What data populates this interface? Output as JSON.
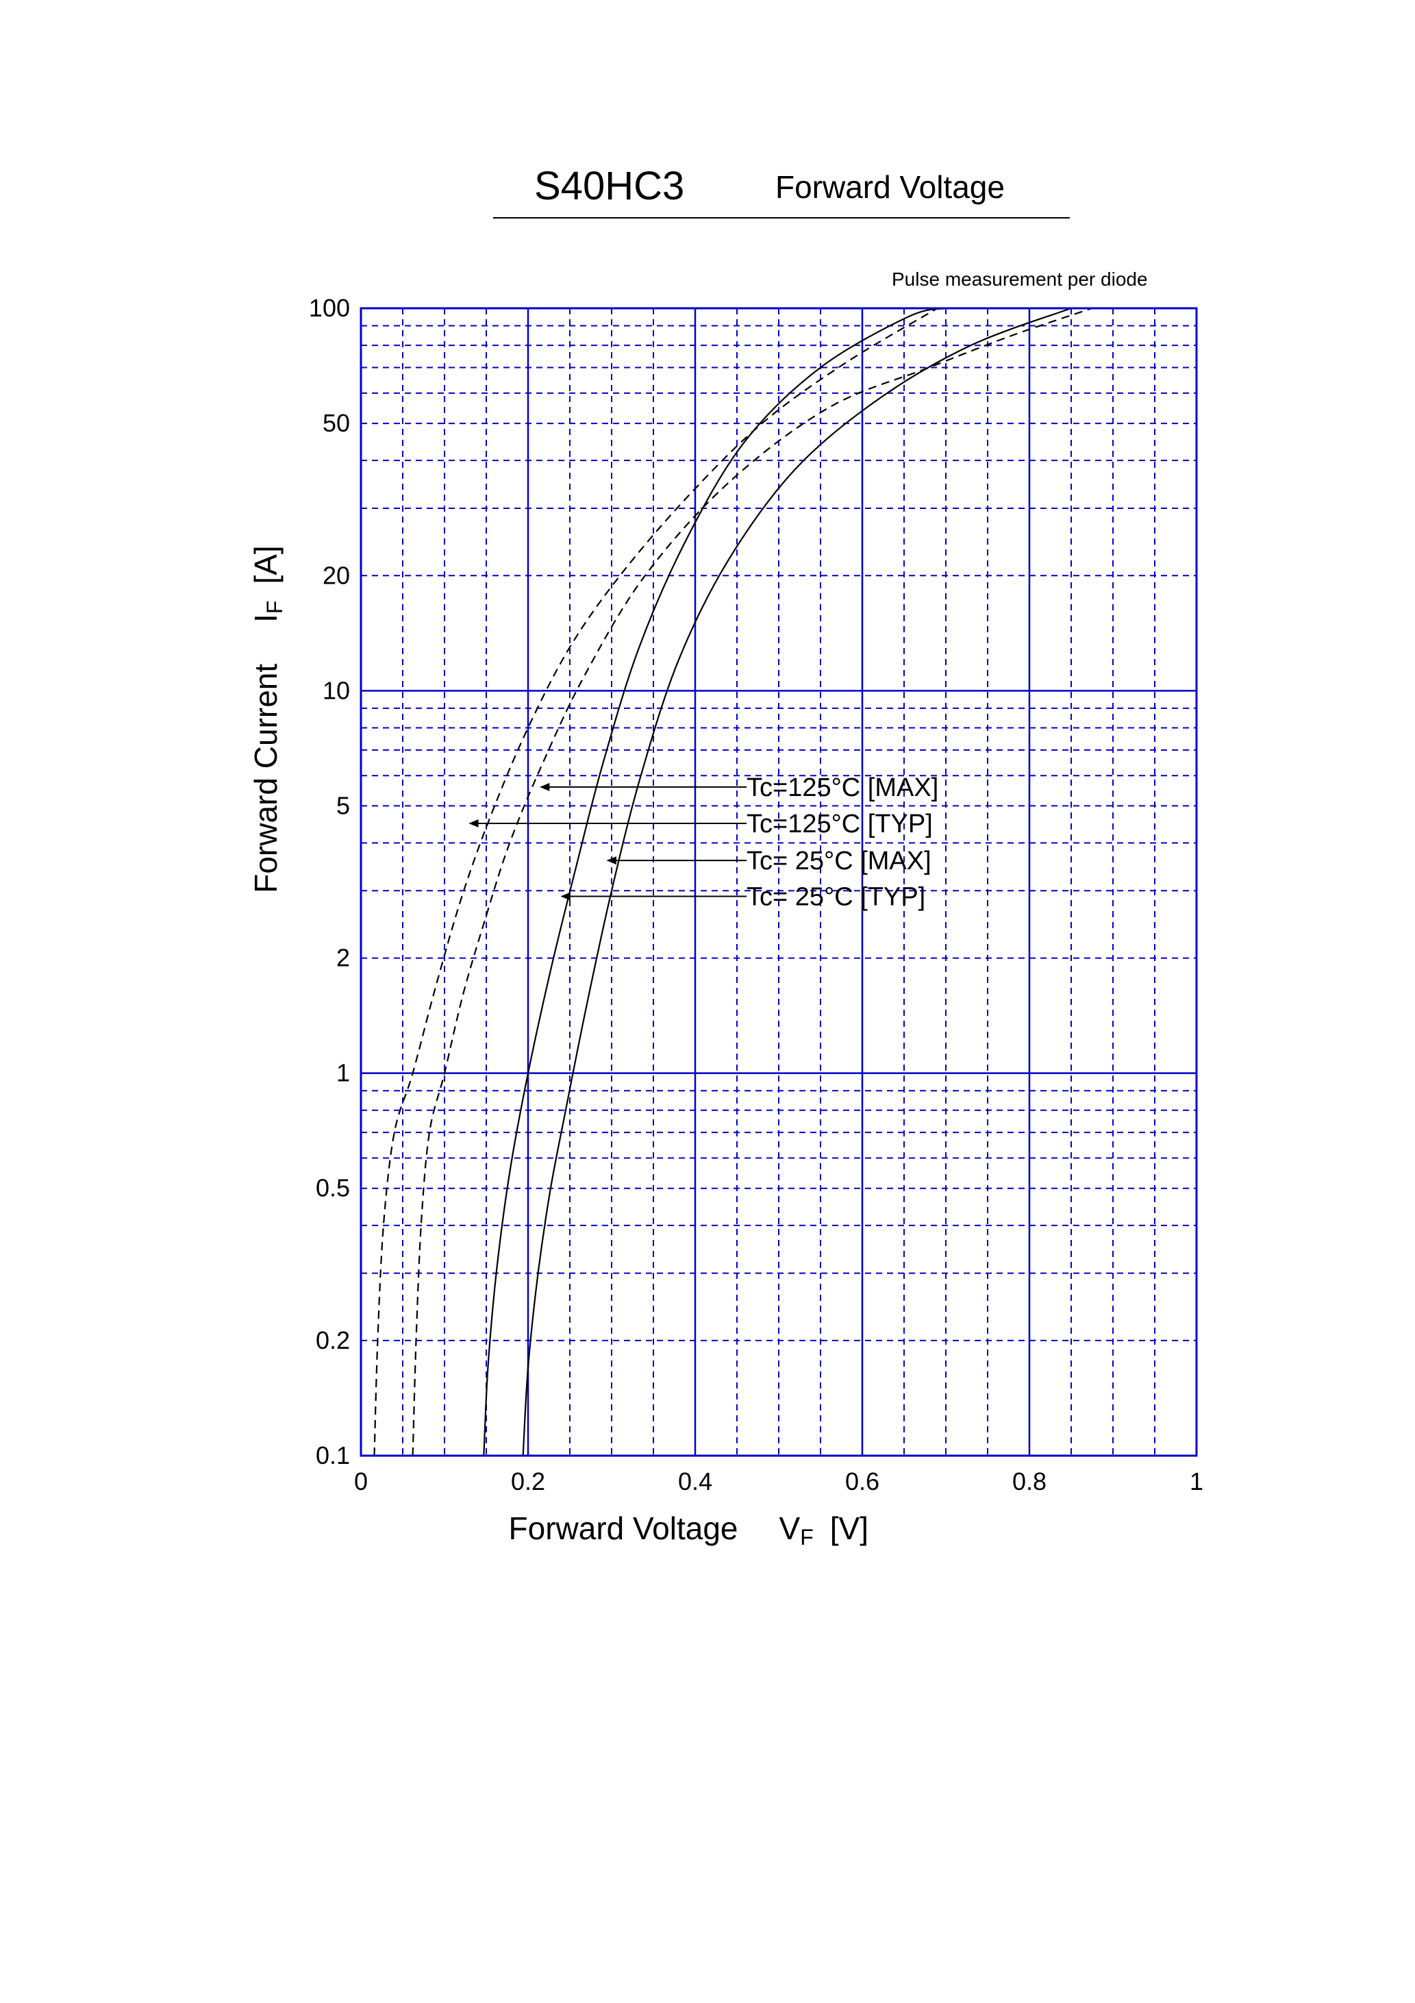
{
  "header": {
    "part_number": "S40HC3",
    "title": "Forward Voltage",
    "note": "Pulse measurement per diode"
  },
  "chart_data": {
    "type": "line",
    "title": "Forward Voltage",
    "xlabel": {
      "main": "Forward Voltage",
      "symbol": "V",
      "subscript": "F",
      "unit": "[V]"
    },
    "ylabel": {
      "main": "Forward Current",
      "symbol": "I",
      "subscript": "F",
      "unit": "[A]"
    },
    "xlim": [
      0,
      1
    ],
    "ylim": [
      0.1,
      100
    ],
    "yscale": "log",
    "grid": true,
    "x_ticks": [
      {
        "v": 0,
        "label": "0"
      },
      {
        "v": 0.2,
        "label": "0.2"
      },
      {
        "v": 0.4,
        "label": "0.4"
      },
      {
        "v": 0.6,
        "label": "0.6"
      },
      {
        "v": 0.8,
        "label": "0.8"
      },
      {
        "v": 1,
        "label": "1"
      }
    ],
    "y_ticks": [
      {
        "v": 0.1,
        "label": "0.1"
      },
      {
        "v": 0.2,
        "label": "0.2"
      },
      {
        "v": 0.5,
        "label": "0.5"
      },
      {
        "v": 1,
        "label": "1"
      },
      {
        "v": 2,
        "label": "2"
      },
      {
        "v": 5,
        "label": "5"
      },
      {
        "v": 10,
        "label": "10"
      },
      {
        "v": 20,
        "label": "20"
      },
      {
        "v": 50,
        "label": "50"
      },
      {
        "v": 100,
        "label": "100"
      }
    ],
    "series": [
      {
        "name": "Tc=125°C [MAX]",
        "style": "dashed",
        "x": [
          0.062,
          0.066,
          0.072,
          0.082,
          0.1,
          0.122,
          0.148,
          0.178,
          0.218,
          0.268,
          0.34,
          0.44,
          0.56,
          0.68,
          0.78,
          0.875
        ],
        "y": [
          0.1,
          0.2,
          0.4,
          0.7,
          1.0,
          1.6,
          2.5,
          4.0,
          6.5,
          11,
          20,
          35,
          55,
          70,
          85,
          100
        ],
        "annotation": {
          "label": "Tc=125°C [MAX]",
          "x": 0.215,
          "y": 5.6
        }
      },
      {
        "name": "Tc=125°C [TYP]",
        "style": "dashed",
        "x": [
          0.016,
          0.02,
          0.027,
          0.04,
          0.062,
          0.09,
          0.123,
          0.16,
          0.2,
          0.25,
          0.31,
          0.39,
          0.48,
          0.58,
          0.69
        ],
        "y": [
          0.1,
          0.2,
          0.4,
          0.7,
          1.0,
          1.7,
          3.0,
          5.0,
          8.0,
          13,
          20,
          32,
          50,
          72,
          100
        ],
        "annotation": {
          "label": "Tc=125°C [TYP]",
          "x": 0.13,
          "y": 4.5
        }
      },
      {
        "name": "Tc=  25°C [MAX]",
        "style": "solid",
        "x": [
          0.194,
          0.2,
          0.212,
          0.227,
          0.245,
          0.27,
          0.3,
          0.335,
          0.38,
          0.44,
          0.52,
          0.62,
          0.73,
          0.85
        ],
        "y": [
          0.1,
          0.17,
          0.3,
          0.5,
          0.8,
          1.5,
          3.0,
          6.0,
          12,
          22,
          38,
          58,
          80,
          100
        ],
        "annotation": {
          "label": "Tc=  25°C [MAX]",
          "x": 0.295,
          "y": 3.6
        }
      },
      {
        "name": "Tc=  25°C [TYP]",
        "style": "solid",
        "x": [
          0.147,
          0.152,
          0.162,
          0.178,
          0.2,
          0.228,
          0.258,
          0.29,
          0.333,
          0.39,
          0.46,
          0.55,
          0.655,
          0.7
        ],
        "y": [
          0.1,
          0.17,
          0.3,
          0.55,
          1.0,
          1.9,
          3.5,
          6.5,
          13,
          25,
          45,
          70,
          95,
          100
        ],
        "annotation": {
          "label": "Tc=  25°C [TYP]",
          "x": 0.24,
          "y": 2.9
        }
      }
    ]
  }
}
